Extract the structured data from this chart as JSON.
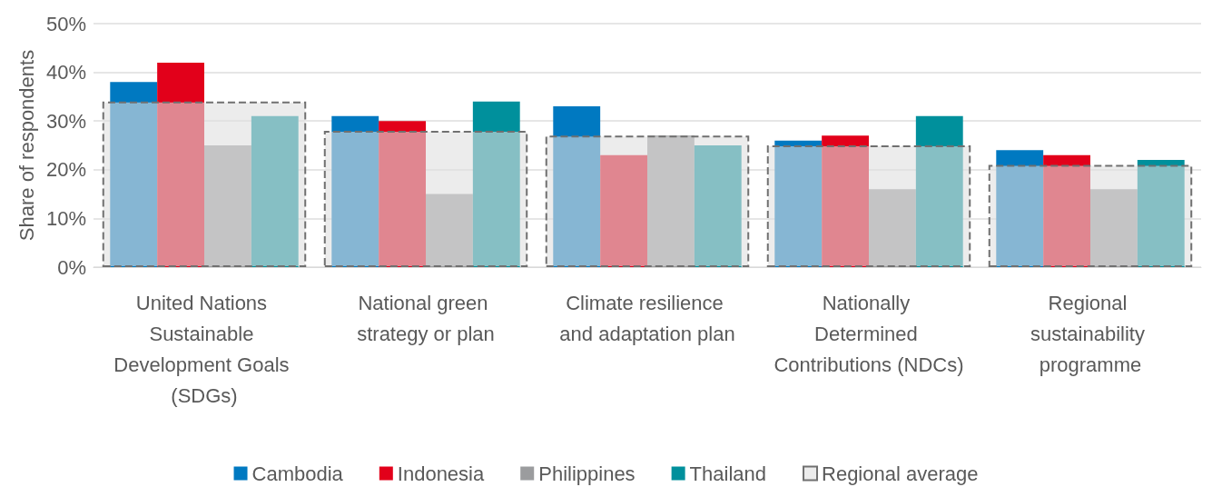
{
  "chart_data": {
    "type": "bar",
    "ylabel": "Share of respondents",
    "categories": [
      "United Nations Sustainable Development Goals (SDGs)",
      "National green strategy or plan",
      "Climate resilience and adaptation plan",
      "Nationally Determined Contributions (NDCs)",
      "Regional sustainability programme"
    ],
    "series": [
      {
        "name": "Cambodia",
        "color": "#0079c1",
        "values": [
          38,
          31,
          33,
          26,
          24
        ]
      },
      {
        "name": "Indonesia",
        "color": "#e2001a",
        "values": [
          42,
          30,
          23,
          27,
          23
        ]
      },
      {
        "name": "Philippines",
        "color": "#9b9c9e",
        "values": [
          25,
          15,
          27,
          16,
          16
        ]
      },
      {
        "name": "Thailand",
        "color": "#00909c",
        "values": [
          31,
          34,
          25,
          31,
          22
        ]
      },
      {
        "name": "Regional average",
        "color": "#e0e0e0",
        "line_style": "dashed",
        "values": [
          34,
          28,
          27,
          25,
          21
        ]
      }
    ],
    "ylim": [
      0,
      50
    ],
    "yticks": [
      {
        "value": 0,
        "label": "0%"
      },
      {
        "value": 10,
        "label": "10%"
      },
      {
        "value": 20,
        "label": "20%"
      },
      {
        "value": 30,
        "label": "30%"
      },
      {
        "value": 40,
        "label": "40%"
      },
      {
        "value": 50,
        "label": "50%"
      }
    ],
    "grid": "y",
    "legend": "bottom"
  }
}
